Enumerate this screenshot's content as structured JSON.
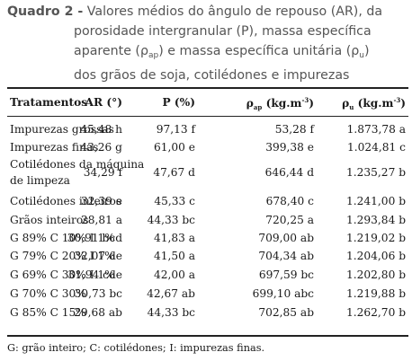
{
  "caption": {
    "label": "Quadro 2 -",
    "line1": "Valores médios do ângulo de repouso (AR), da",
    "line2": "porosidade intergranular (P), massa específica",
    "line3_pre": "aparente (ρ",
    "line3_sub1": "ap",
    "line3_mid": ") e massa específica unitária (ρ",
    "line3_sub2": "u",
    "line3_post": ")",
    "line4": "dos grãos de soja, cotilédones e impurezas"
  },
  "table": {
    "headers": {
      "tratamentos": "Tratamentos",
      "ar": "AR (°)",
      "p": "P (%)",
      "rho_ap_sym": "ρ",
      "rho_ap_sub": "ap",
      "rho_ap_unit": "(kg.m",
      "rho_ap_exp": "-3",
      "rho_ap_close": ")",
      "rho_u_sym": "ρ",
      "rho_u_sub": "u",
      "rho_u_unit": "(kg.m",
      "rho_u_exp": "-3",
      "rho_u_close": ")"
    },
    "rows": [
      {
        "trat": "Impurezas grossas",
        "ar": "45,48 h",
        "p": "97,13 f",
        "rho_ap": "53,28 f",
        "rho_u": "1.873,78 a"
      },
      {
        "trat": "Impurezas finas",
        "ar": "43,26 g",
        "p": "61,00 e",
        "rho_ap": "399,38 e",
        "rho_u": "1.024,81 c"
      },
      {
        "trat1": "Cotilédones da máquina",
        "trat2": "de limpeza",
        "ar": "34,29 f",
        "p": "47,67 d",
        "rho_ap": "646,44 d",
        "rho_u": "1.235,27 b"
      },
      {
        "trat": "Cotilédones inteiros",
        "ar": "32,39 e",
        "p": "45,33 c",
        "rho_ap": "678,40 c",
        "rho_u": "1.241,00 b"
      },
      {
        "trat": "Grãos inteiros",
        "ar": "28,81 a",
        "p": "44,33 bc",
        "rho_ap": "720,25 a",
        "rho_u": "1.293,84 b"
      },
      {
        "trat": "G 89% C 10% I 1%",
        "ar": "30,91 bcd",
        "p": "41,83 a",
        "rho_ap": "709,00 ab",
        "rho_u": "1.219,02 b"
      },
      {
        "trat": "G 79% C 20% I 1%",
        "ar": "32,07 de",
        "p": "41,50 a",
        "rho_ap": "704,34 ab",
        "rho_u": "1.204,06 b"
      },
      {
        "trat": "G 69% C 30% I 1%",
        "ar": "31,94 cde",
        "p": "42,00 a",
        "rho_ap": "697,59 bc",
        "rho_u": "1.202,80 b"
      },
      {
        "trat": "G 70% C 30%",
        "ar": "30,73 bc",
        "p": "42,67 ab",
        "rho_ap": "699,10 abc",
        "rho_u": "1.219,88 b"
      },
      {
        "trat": "G 85% C 15%",
        "ar": "29,68 ab",
        "p": "44,33 bc",
        "rho_ap": "702,85 ab",
        "rho_u": "1.262,70 b"
      }
    ]
  },
  "footnote": "G: grão inteiro; C: cotilédones; I: impurezas finas."
}
